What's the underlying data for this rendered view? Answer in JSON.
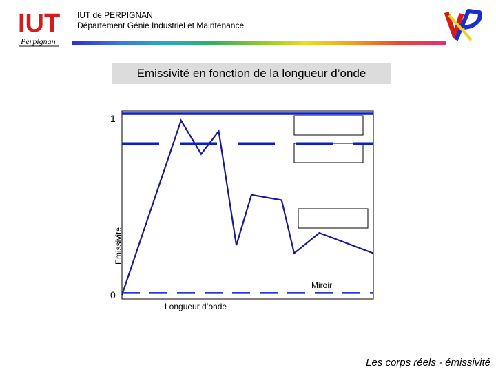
{
  "header": {
    "institution": "IUT de PERPIGNAN",
    "department": "Département Génie Industriel et Maintenance",
    "logo_left": "IUT",
    "logo_left_script": "Perpignan",
    "logo_right": "UP"
  },
  "slide": {
    "title": "Emissivité en fonction de la longueur d’onde",
    "footer": "Les corps réels - émissivité"
  },
  "colors": {
    "curve": "#1a1a8c",
    "reference_lines": "#0a1fc8",
    "frame": "#000000"
  },
  "chart_data": {
    "type": "line",
    "title": "Emissivité en fonction de la longueur d’onde",
    "xlabel": "Longueur d’onde",
    "ylabel": "Emissivité",
    "ylim": [
      0,
      1
    ],
    "yticks": [
      {
        "value": 1,
        "label": "1"
      },
      {
        "value": 0,
        "label": "0"
      }
    ],
    "series": [
      {
        "name": "",
        "style": "solid-dark",
        "x": [
          0,
          0.235,
          0.315,
          0.385,
          0.455,
          0.515,
          0.635,
          0.685,
          0.785,
          1.0
        ],
        "y": [
          0.0,
          0.985,
          0.795,
          0.925,
          0.28,
          0.565,
          0.535,
          0.235,
          0.35,
          0.235
        ]
      },
      {
        "name": "",
        "style": "thick-solid",
        "x": [
          0,
          1
        ],
        "y": [
          1,
          1
        ]
      },
      {
        "name": "",
        "style": "long-dash",
        "x": [
          0,
          1
        ],
        "y": [
          0.855,
          0.855
        ]
      },
      {
        "name": "Miroir",
        "style": "dash",
        "x": [
          0,
          1
        ],
        "y": [
          0.01,
          0.01
        ]
      }
    ],
    "annotations": [
      {
        "text": "Miroir",
        "x": 0.8,
        "y": 0.08
      }
    ],
    "legend_boxes": 3,
    "grid": false
  }
}
